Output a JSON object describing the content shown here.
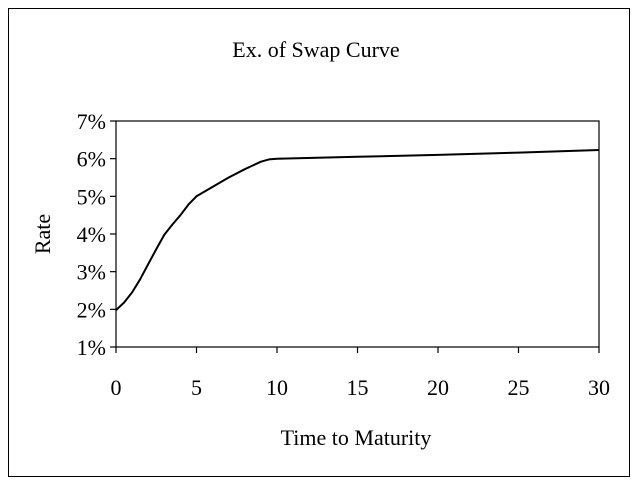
{
  "chart_data": {
    "type": "line",
    "title": "Ex. of Swap Curve",
    "xlabel": "Time to Maturity",
    "ylabel": "Rate",
    "xlim": [
      0,
      30
    ],
    "ylim": [
      1,
      7
    ],
    "x_ticks": [
      "0",
      "5",
      "10",
      "15",
      "20",
      "25",
      "30"
    ],
    "y_ticks": [
      "1%",
      "2%",
      "3%",
      "4%",
      "5%",
      "6%",
      "7%"
    ],
    "grid": false,
    "legend": "none",
    "series": [
      {
        "x": [
          0,
          0.5,
          1,
          1.5,
          2,
          2.5,
          3,
          3.5,
          4,
          4.5,
          5,
          6,
          7,
          8,
          9,
          9.5,
          10,
          15,
          20,
          25,
          30
        ],
        "y": [
          1.98,
          2.18,
          2.45,
          2.8,
          3.2,
          3.6,
          3.98,
          4.25,
          4.5,
          4.78,
          5.0,
          5.25,
          5.5,
          5.72,
          5.92,
          5.98,
          6.0,
          6.05,
          6.1,
          6.16,
          6.23
        ],
        "color": "#000000"
      }
    ]
  }
}
